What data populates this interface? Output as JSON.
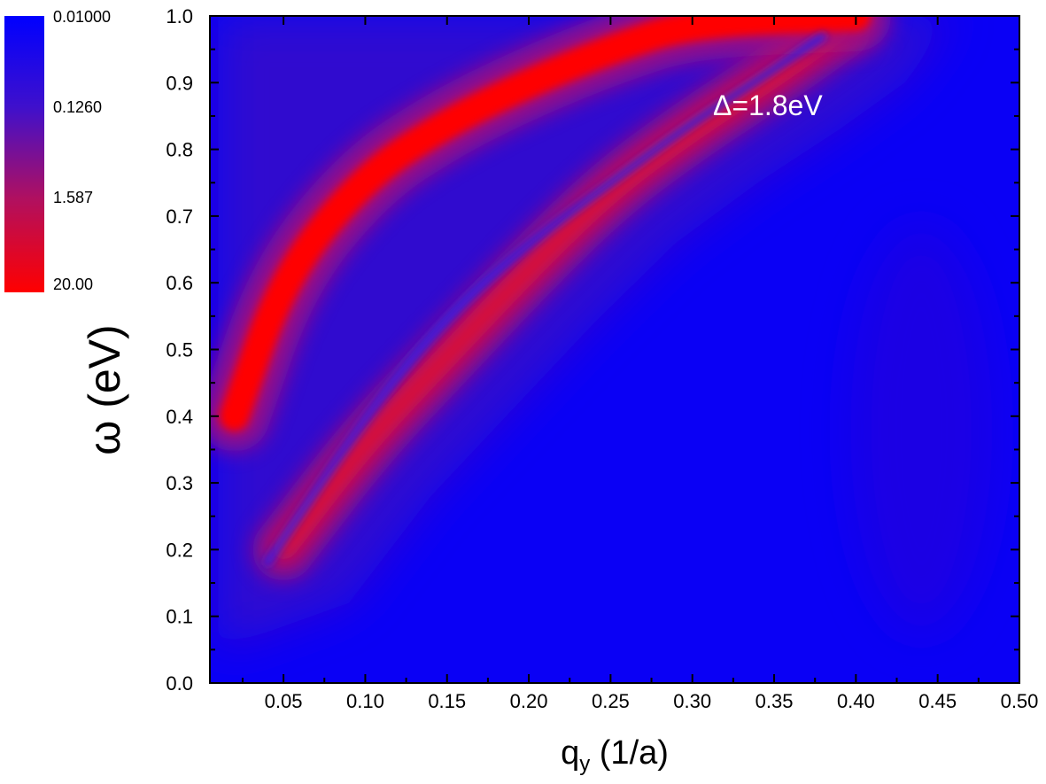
{
  "chart_data": {
    "type": "heatmap",
    "title": "",
    "xlabel": "q",
    "xlabel_subscript": "y",
    "xlabel_unit": " (1/a)",
    "ylabel": "ω (eV)",
    "xlim": [
      0.005,
      0.5
    ],
    "ylim": [
      0.0,
      1.0
    ],
    "x_ticks": [
      "0.05",
      "0.10",
      "0.15",
      "0.20",
      "0.25",
      "0.30",
      "0.35",
      "0.40",
      "0.45",
      "0.50"
    ],
    "x_tick_values": [
      0.05,
      0.1,
      0.15,
      0.2,
      0.25,
      0.3,
      0.35,
      0.4,
      0.45,
      0.5
    ],
    "y_ticks": [
      "0.0",
      "0.1",
      "0.2",
      "0.3",
      "0.4",
      "0.5",
      "0.6",
      "0.7",
      "0.8",
      "0.9",
      "1.0"
    ],
    "y_tick_values": [
      0.0,
      0.1,
      0.2,
      0.3,
      0.4,
      0.5,
      0.6,
      0.7,
      0.8,
      0.9,
      1.0
    ],
    "annotation": "Δ=1.8eV",
    "colorbar": {
      "scale": "log",
      "labels": [
        "0.01000",
        "0.1260",
        "1.587",
        "20.00"
      ],
      "values": [
        0.01,
        0.126,
        1.587,
        20.0
      ],
      "colors": [
        "#0000ff",
        "#ff0000"
      ],
      "placement": "top-left"
    },
    "features": [
      {
        "name": "upper red branch",
        "points": [
          [
            0.02,
            0.4
          ],
          [
            0.05,
            0.61
          ],
          [
            0.1,
            0.76
          ],
          [
            0.15,
            0.84
          ],
          [
            0.2,
            0.9
          ],
          [
            0.25,
            0.95
          ],
          [
            0.3,
            0.99
          ],
          [
            0.4,
            1.0
          ]
        ]
      },
      {
        "name": "blue dip line",
        "points": [
          [
            0.04,
            0.18
          ],
          [
            0.1,
            0.4
          ],
          [
            0.15,
            0.55
          ],
          [
            0.2,
            0.66
          ],
          [
            0.25,
            0.75
          ],
          [
            0.3,
            0.84
          ],
          [
            0.35,
            0.92
          ],
          [
            0.38,
            0.97
          ]
        ]
      },
      {
        "name": "lower red branch",
        "points": [
          [
            0.05,
            0.2
          ],
          [
            0.1,
            0.36
          ],
          [
            0.15,
            0.49
          ],
          [
            0.2,
            0.62
          ],
          [
            0.25,
            0.74
          ],
          [
            0.3,
            0.83
          ],
          [
            0.35,
            0.91
          ],
          [
            0.39,
            0.98
          ]
        ]
      }
    ]
  }
}
